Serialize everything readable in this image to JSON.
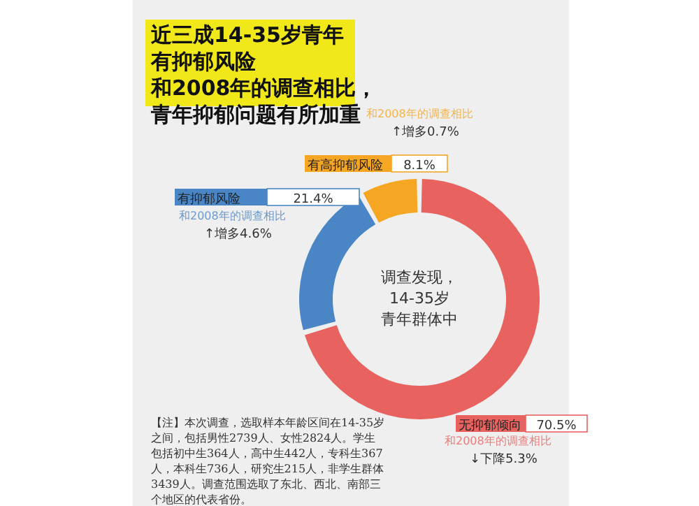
{
  "chart_data": {
    "type": "donut",
    "title": "近三成14-35岁青年有抑郁风险",
    "subtitle": "和2008年的调查相比，青年抑郁问题有所加重",
    "categories": [
      "无抑郁倾向",
      "有抑郁风险",
      "有高抑郁风险"
    ],
    "values": [
      70.5,
      21.4,
      8.1
    ],
    "colors": [
      "#e8625f",
      "#4a86c5",
      "#f5a623"
    ],
    "value_labels": [
      "70.5%",
      "21.4%",
      "8.1%"
    ],
    "annotations": [
      [
        "调查发现，",
        "14-35岁",
        "青年群体中"
      ],
      "和2008年的调查相比\n↓下降5.3%",
      "和2008年的调查相比\n↑增多4.6%",
      "和2008年的调查相比\n↑增多0.7%",
      "【注】本次调查，选取样本年龄区间在14-35岁之间，包括男性2739人、女性2824人。学生包括初中生364人，高中生442人，专科生367人，本科生736人，研究生215人，非学生群体3439人。调查范围选取了东北、西北、南部三个地区的代表省份。"
    ]
  }
}
